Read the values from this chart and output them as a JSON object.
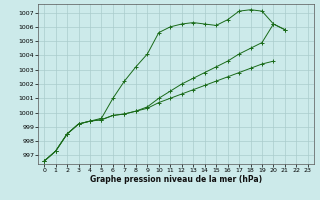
{
  "title": "Graphe pression niveau de la mer (hPa)",
  "background_color": "#cceaea",
  "grid_color": "#aacccc",
  "line_color": "#1a6b1a",
  "xlim": [
    -0.5,
    23.5
  ],
  "ylim": [
    996.4,
    1007.6
  ],
  "xticks": [
    0,
    1,
    2,
    3,
    4,
    5,
    6,
    7,
    8,
    9,
    10,
    11,
    12,
    13,
    14,
    15,
    16,
    17,
    18,
    19,
    20,
    21,
    22,
    23
  ],
  "yticks": [
    997,
    998,
    999,
    1000,
    1001,
    1002,
    1003,
    1004,
    1005,
    1006,
    1007
  ],
  "line1": [
    996.6,
    997.3,
    998.5,
    999.2,
    999.4,
    999.6,
    1001.0,
    1002.2,
    1003.2,
    1004.1,
    1005.6,
    1006.0,
    1006.2,
    1006.3,
    1006.2,
    1006.1,
    1006.5,
    1007.1,
    1007.2,
    1007.1,
    1006.2,
    1005.8,
    null,
    null
  ],
  "line2": [
    996.6,
    997.3,
    998.5,
    999.2,
    999.4,
    999.5,
    999.8,
    999.9,
    1000.1,
    1000.4,
    1001.0,
    1001.5,
    1002.0,
    1002.4,
    1002.8,
    1003.2,
    1003.6,
    1004.1,
    1004.5,
    1004.9,
    1006.2,
    1005.8,
    null,
    null
  ],
  "line3": [
    996.6,
    997.3,
    998.5,
    999.2,
    999.4,
    999.5,
    999.8,
    999.9,
    1000.1,
    1000.3,
    1000.7,
    1001.0,
    1001.3,
    1001.6,
    1001.9,
    1002.2,
    1002.5,
    1002.8,
    1003.1,
    1003.4,
    1003.6,
    null,
    null,
    null
  ]
}
